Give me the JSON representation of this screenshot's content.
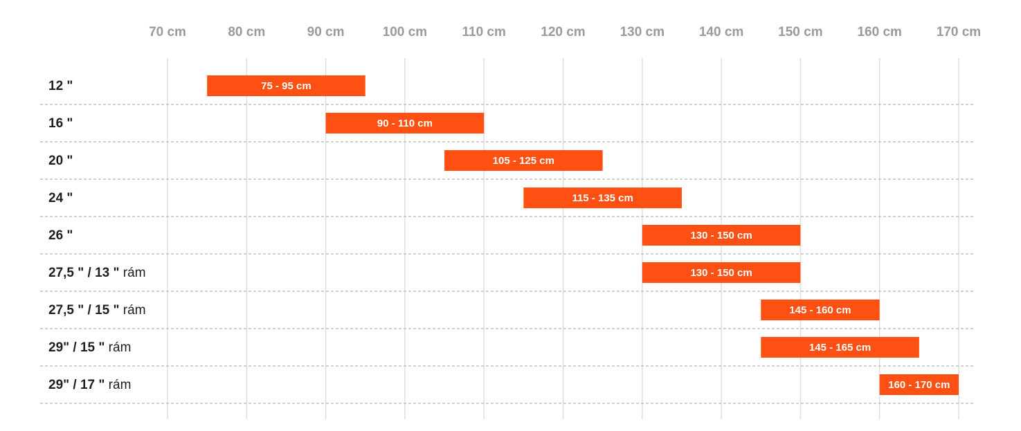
{
  "chart_data": {
    "type": "bar",
    "orientation": "horizontal-range",
    "bar_color": "#fd5012",
    "x_ticks": [
      "70 cm",
      "80 cm",
      "90 cm",
      "100 cm",
      "110 cm",
      "120 cm",
      "130 cm",
      "140 cm",
      "150 cm",
      "160 cm",
      "170 cm"
    ],
    "xlim": [
      70,
      170
    ],
    "x_axis_position": "top",
    "grid": true,
    "rows": [
      {
        "size": "12 \"",
        "suffix": "",
        "start": 75,
        "end": 95,
        "label": "75 - 95 cm"
      },
      {
        "size": "16 \"",
        "suffix": "",
        "start": 90,
        "end": 110,
        "label": "90 - 110 cm"
      },
      {
        "size": "20 \"",
        "suffix": "",
        "start": 105,
        "end": 125,
        "label": "105 - 125 cm"
      },
      {
        "size": "24 \"",
        "suffix": "",
        "start": 115,
        "end": 135,
        "label": "115 - 135 cm"
      },
      {
        "size": "26 \"",
        "suffix": "",
        "start": 130,
        "end": 150,
        "label": "130 - 150 cm"
      },
      {
        "size": "27,5 \" / 13 \"",
        "suffix": "rám",
        "start": 130,
        "end": 150,
        "label": "130 - 150 cm"
      },
      {
        "size": "27,5 \" / 15 \"",
        "suffix": "rám",
        "start": 145,
        "end": 160,
        "label": "145 - 160 cm"
      },
      {
        "size": "29\" / 15 \"",
        "suffix": "rám",
        "start": 145,
        "end": 165,
        "label": "145 - 165 cm"
      },
      {
        "size": "29\" / 17 \"",
        "suffix": "rám",
        "start": 160,
        "end": 170,
        "label": "160 - 170 cm"
      }
    ]
  }
}
